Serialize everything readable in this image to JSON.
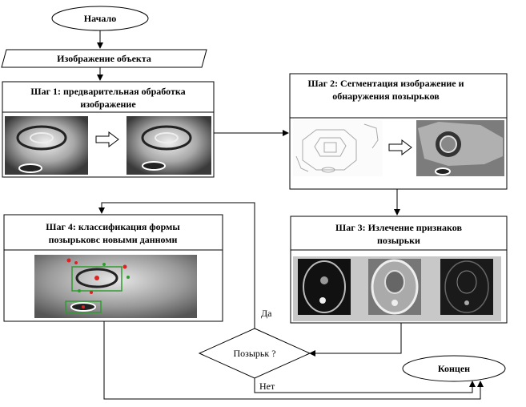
{
  "start": "Начало",
  "input": "Изображение объекта",
  "step1": {
    "title_line1": "Шаг 1: предварительная обработка",
    "title_line2": "изображение"
  },
  "step2": {
    "title_line1": "Шаг 2: Сегментация изображение и",
    "title_line2": "обнаружения позырьков"
  },
  "step3": {
    "title_line1": "Шаг 3: Излечение признаков",
    "title_line2": "позырьки"
  },
  "step4": {
    "title_line1": "Шаг 4: классификация формы",
    "title_line2": "позырьковс новыми данноми"
  },
  "decision": {
    "question": "Позырьк ?",
    "yes": "Да",
    "no": "Нет"
  },
  "end": "Концен"
}
